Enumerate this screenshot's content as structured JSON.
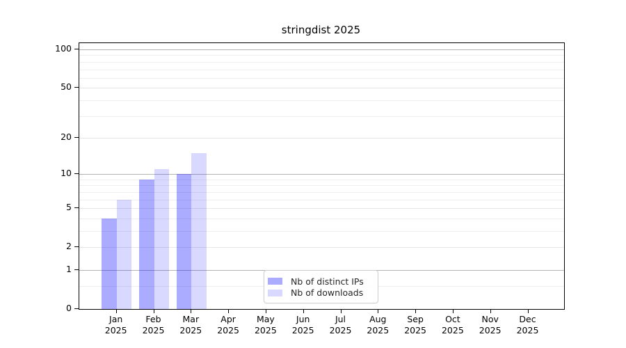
{
  "chart_data": {
    "type": "bar",
    "title": "stringdist 2025",
    "scale": "log1p",
    "categories": [
      "Jan",
      "Feb",
      "Mar",
      "Apr",
      "May",
      "Jun",
      "Jul",
      "Aug",
      "Sep",
      "Oct",
      "Nov",
      "Dec"
    ],
    "year_label": "2025",
    "series": [
      {
        "name": "Nb of distinct IPs",
        "color": "#0000ff",
        "alpha": 0.33,
        "values": [
          4,
          9,
          10,
          0,
          0,
          0,
          0,
          0,
          0,
          0,
          0,
          0
        ]
      },
      {
        "name": "Nb of downloads",
        "color": "#0000ff",
        "alpha": 0.15,
        "values": [
          6,
          11,
          15,
          0,
          0,
          0,
          0,
          0,
          0,
          0,
          0,
          0
        ]
      }
    ],
    "y_ticks": [
      0,
      1,
      2,
      5,
      10,
      20,
      50,
      100
    ],
    "ylim": [
      0,
      112
    ],
    "grid": "on",
    "gridlines": {
      "emphasis": [
        1,
        10,
        100
      ],
      "major_light": [
        2,
        5,
        20,
        50
      ],
      "minor": [
        0.5,
        3,
        4,
        6,
        7,
        8,
        9,
        30,
        40,
        60,
        70,
        80,
        90
      ]
    },
    "legend_position": "bottom-center"
  },
  "colors": {
    "axis": "#000000",
    "grid_emphasis": "#b3b3b3",
    "grid_major_light": "#e6e6e6",
    "grid_minor": "#eeeeee",
    "legend_border": "#cccccc",
    "background": "#ffffff"
  }
}
